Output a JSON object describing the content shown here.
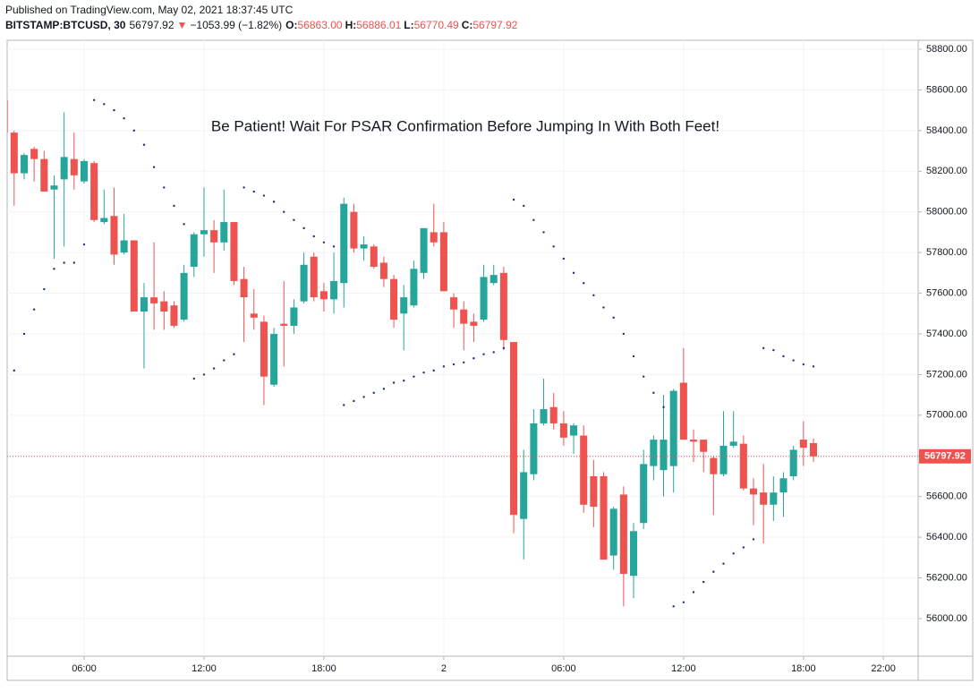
{
  "header": {
    "published": "Published on TradingView.com, May 02, 2021 18:37:45 UTC",
    "symbol": "BITSTAMP:BTCUSD, 30",
    "arrow": "▼",
    "change": "−1053.99 (−1.82%)",
    "o_label": "O:",
    "open": "56863.00",
    "h_label": "H:",
    "high": "56886.01",
    "l_label": "L:",
    "low": "56770.49",
    "c_label": "C:",
    "close": "56797.92"
  },
  "chart_data": {
    "type": "candlestick",
    "annotation": "Be Patient! Wait For PSAR Confirmation Before Jumping In With Both Feet!",
    "up_color": "#26a69a",
    "down_color": "#ef5350",
    "psar_color": "#1c2f80",
    "grid": true,
    "x": [
      2,
      2.5,
      3,
      3.5,
      4,
      4.5,
      5,
      5.5,
      6,
      6.5,
      7,
      7.5,
      8,
      8.5,
      9,
      9.5,
      10,
      10.5,
      11,
      11.5,
      12,
      12.5,
      13,
      13.5,
      14,
      14.5,
      15,
      15.5,
      16,
      16.5,
      17,
      17.5,
      18,
      18.5,
      19,
      19.5,
      20,
      20.5,
      21,
      21.5,
      22,
      22.5,
      23,
      23.5,
      24,
      24.5,
      25,
      25.5,
      26,
      26.5,
      27,
      27.5,
      28,
      28.5,
      29,
      29.5,
      30,
      30.5,
      31,
      31.5,
      32,
      32.5,
      33,
      33.5,
      34,
      34.5,
      35,
      35.5,
      36,
      36.5,
      37,
      37.5,
      38,
      38.5,
      39,
      39.5,
      40,
      40.5,
      41,
      41.5,
      42,
      42.5
    ],
    "open": [
      58550,
      58390,
      58190,
      58310,
      58260,
      58110,
      58160,
      58260,
      58150,
      58240,
      57950,
      57980,
      57800,
      57860,
      57510,
      57580,
      57560,
      57540,
      57470,
      57730,
      57890,
      57910,
      57850,
      57950,
      57670,
      57500,
      57460,
      57150,
      57450,
      57440,
      57560,
      57780,
      57610,
      57570,
      57650,
      58000,
      57820,
      57830,
      57750,
      57670,
      57500,
      57540,
      57700,
      57900,
      57900,
      57580,
      57520,
      57460,
      57470,
      57650,
      57700,
      57360,
      56490,
      56710,
      56960,
      57040,
      56960,
      56900,
      56900,
      56700,
      56700,
      56310,
      56610,
      56210,
      56470,
      56750,
      56730,
      56750,
      57160,
      56880,
      56880,
      56790,
      56710,
      56850,
      56860,
      56640,
      56620,
      56560,
      56620,
      56700,
      56880,
      56863
    ],
    "high": [
      58560,
      58400,
      58290,
      58320,
      58300,
      58180,
      58490,
      58390,
      58260,
      58250,
      58110,
      58120,
      57990,
      57860,
      57650,
      57850,
      57610,
      57560,
      57740,
      57900,
      58120,
      57960,
      58110,
      57950,
      57730,
      57620,
      57490,
      57430,
      57660,
      57570,
      57800,
      57800,
      57650,
      57800,
      58070,
      58040,
      57880,
      57840,
      57780,
      57690,
      57640,
      57760,
      57920,
      58040,
      57950,
      57600,
      57560,
      57500,
      57740,
      57740,
      57730,
      57360,
      56830,
      57030,
      57180,
      57110,
      57020,
      56960,
      56950,
      56780,
      56720,
      56550,
      56650,
      56470,
      56830,
      56900,
      57100,
      57130,
      57330,
      56930,
      56880,
      56800,
      57020,
      57020,
      56900,
      56690,
      56760,
      56700,
      56720,
      56850,
      56970,
      56886.01
    ],
    "low": [
      58380,
      58030,
      58160,
      58150,
      58100,
      57770,
      57830,
      58110,
      58140,
      57950,
      57940,
      57740,
      57790,
      57510,
      57230,
      57420,
      57420,
      57430,
      57460,
      57680,
      57780,
      57700,
      57810,
      57640,
      57360,
      57420,
      57050,
      57140,
      57240,
      57400,
      57550,
      57560,
      57510,
      57500,
      57530,
      57800,
      57760,
      57720,
      57630,
      57430,
      57320,
      57530,
      57670,
      57830,
      57610,
      57430,
      57320,
      57360,
      57460,
      57640,
      57320,
      56420,
      56290,
      56680,
      56950,
      56930,
      56850,
      56810,
      56520,
      56450,
      56290,
      56240,
      56060,
      56100,
      56440,
      56680,
      56600,
      56620,
      56880,
      56770,
      56720,
      56510,
      56700,
      56840,
      56630,
      56460,
      56370,
      56480,
      56500,
      56680,
      56750,
      56770.49
    ],
    "close": [
      58390,
      58190,
      58280,
      58260,
      58100,
      58130,
      58270,
      58180,
      58250,
      57960,
      57970,
      57790,
      57860,
      57510,
      57580,
      57550,
      57510,
      57440,
      57700,
      57890,
      57910,
      57850,
      57950,
      57660,
      57580,
      57480,
      57190,
      57400,
      57440,
      57530,
      57740,
      57580,
      57570,
      57660,
      58040,
      57820,
      57840,
      57730,
      57670,
      57470,
      57580,
      57720,
      57920,
      57850,
      57610,
      57520,
      57450,
      57440,
      57680,
      57690,
      57370,
      56510,
      56720,
      56960,
      57030,
      56960,
      56890,
      56950,
      56560,
      56550,
      56290,
      56540,
      56220,
      56430,
      56760,
      56880,
      56880,
      57120,
      56880,
      56870,
      56820,
      56710,
      56850,
      56870,
      56640,
      56610,
      56560,
      56620,
      56690,
      56830,
      56840,
      56797.92
    ],
    "psar": [
      null,
      57220,
      57400,
      57520,
      57620,
      57720,
      57750,
      57750,
      57840,
      58550,
      58530,
      58500,
      58460,
      58400,
      58330,
      58220,
      58120,
      58030,
      57940,
      57180,
      57200,
      57230,
      57270,
      57300,
      58120,
      58100,
      58080,
      58050,
      58000,
      57960,
      57920,
      57880,
      57850,
      57830,
      57050,
      57070,
      57090,
      57110,
      57130,
      57160,
      57170,
      57190,
      57210,
      57220,
      57240,
      57250,
      57260,
      57280,
      57300,
      57310,
      57330,
      58060,
      58030,
      57960,
      57900,
      57830,
      57770,
      57700,
      57650,
      57590,
      57530,
      57480,
      57400,
      57290,
      57190,
      57110,
      57040,
      56060,
      56080,
      56130,
      56180,
      56230,
      56270,
      56320,
      56350,
      56390,
      57330,
      57320,
      57290,
      57270,
      57250,
      57240
    ],
    "xlim": [
      2.15,
      47.74
    ],
    "ylim": [
      55815,
      58844
    ],
    "xticks": [
      {
        "value": 6,
        "label": "06:00"
      },
      {
        "value": 12,
        "label": "12:00"
      },
      {
        "value": 18,
        "label": "18:00"
      },
      {
        "value": 24,
        "label": "2"
      },
      {
        "value": 30,
        "label": "06:00"
      },
      {
        "value": 36,
        "label": "12:00"
      },
      {
        "value": 42,
        "label": "18:00"
      },
      {
        "value": 46,
        "label": "22:00"
      }
    ],
    "yticks": [
      {
        "value": 56000,
        "label": "56000.00"
      },
      {
        "value": 56200,
        "label": "56200.00"
      },
      {
        "value": 56400,
        "label": "56400.00"
      },
      {
        "value": 56600,
        "label": "56600.00"
      },
      {
        "value": 56800,
        "label": "56800.00"
      },
      {
        "value": 57000,
        "label": "57000.00"
      },
      {
        "value": 57200,
        "label": "57200.00"
      },
      {
        "value": 57400,
        "label": "57400.00"
      },
      {
        "value": 57600,
        "label": "57600.00"
      },
      {
        "value": 57800,
        "label": "57800.00"
      },
      {
        "value": 58000,
        "label": "58000.00"
      },
      {
        "value": 58200,
        "label": "58200.00"
      },
      {
        "value": 58400,
        "label": "58400.00"
      },
      {
        "value": 58600,
        "label": "58600.00"
      },
      {
        "value": 58800,
        "label": "58800.00"
      }
    ]
  }
}
